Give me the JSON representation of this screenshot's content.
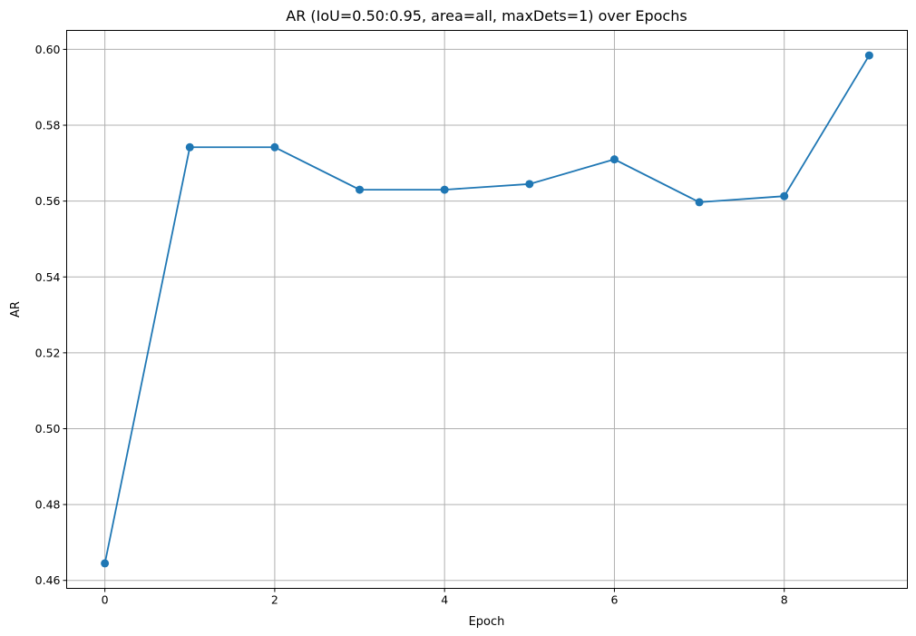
{
  "chart_data": {
    "type": "line",
    "title": "AR (IoU=0.50:0.95, area=all, maxDets=1) over Epochs",
    "xlabel": "Epoch",
    "ylabel": "AR",
    "x": [
      0,
      1,
      2,
      3,
      4,
      5,
      6,
      7,
      8,
      9
    ],
    "series": [
      {
        "values": [
          0.4645,
          0.5742,
          0.5742,
          0.563,
          0.563,
          0.5645,
          0.571,
          0.5597,
          0.5613,
          0.5984
        ],
        "color": "#1f77b4",
        "marker": "circle"
      }
    ],
    "xlim": [
      -0.45,
      9.45
    ],
    "ylim": [
      0.4579,
      0.605
    ],
    "xticks": [
      0,
      2,
      4,
      6,
      8
    ],
    "xtick_labels": [
      "0",
      "2",
      "4",
      "6",
      "8"
    ],
    "yticks": [
      0.46,
      0.48,
      0.5,
      0.52,
      0.54,
      0.56,
      0.58,
      0.6
    ],
    "ytick_labels": [
      "0.46",
      "0.48",
      "0.50",
      "0.52",
      "0.54",
      "0.56",
      "0.58",
      "0.60"
    ],
    "grid": true
  }
}
